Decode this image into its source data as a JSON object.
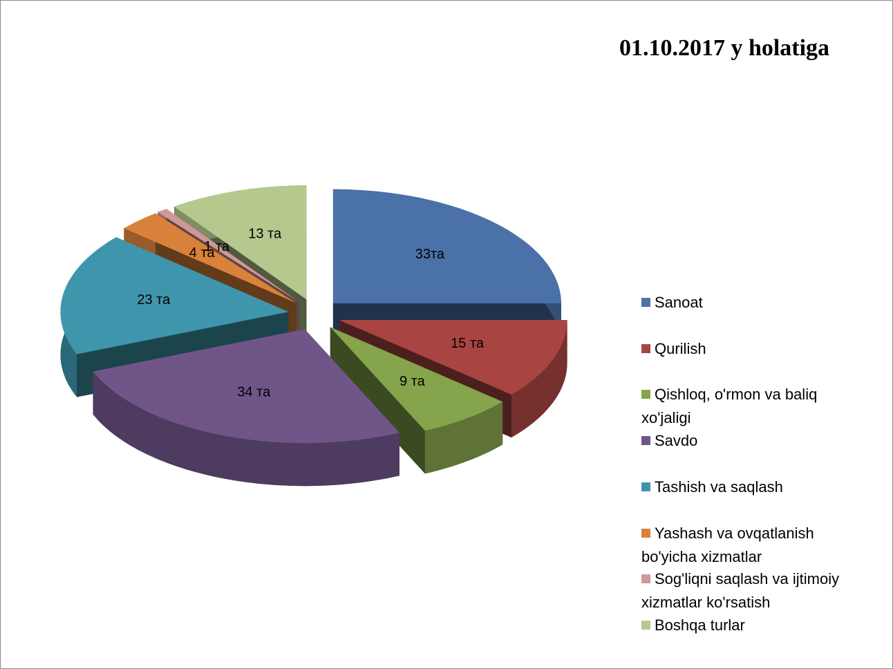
{
  "chart_data": {
    "type": "pie",
    "title": "01.10.2017 y holatiga",
    "categories": [
      "Sanoat",
      "Qurilish",
      "Qishloq, o'rmon va baliq xo'jaligi",
      "Savdo",
      "Tashish va saqlash",
      "Yashash va ovqatlanish bo'yicha xizmatlar",
      "Sog'liqni saqlash va ijtimoiy xizmatlar ko'rsatish",
      "Boshqa turlar"
    ],
    "values": [
      33,
      15,
      9,
      34,
      23,
      4,
      1,
      13
    ],
    "value_labels": [
      "33та",
      "15 та",
      "9 та",
      "34 та",
      "23 та",
      "4 та",
      "1 та",
      "13 та"
    ],
    "colors": [
      "#4a72a8",
      "#a84442",
      "#86a44b",
      "#705589",
      "#3f96ac",
      "#d9823b",
      "#d19796",
      "#b5c98f"
    ],
    "legend": "right"
  }
}
